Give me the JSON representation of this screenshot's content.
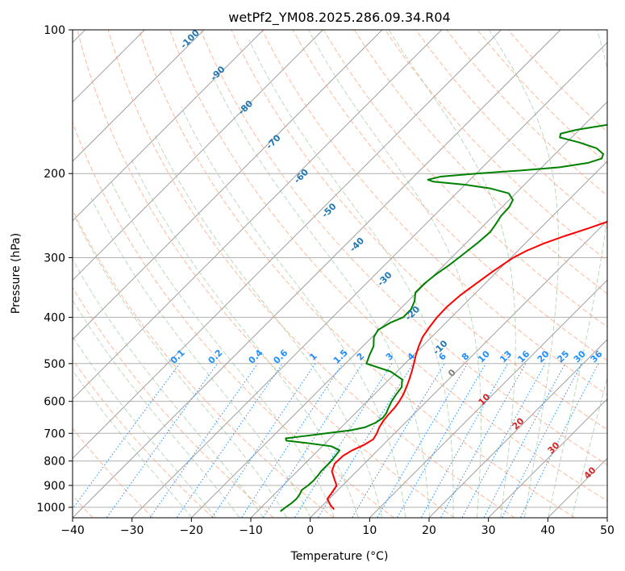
{
  "chart_data": {
    "type": "line",
    "subtype": "skew-t log-p diagram",
    "title": "wetPf2_YM08.2025.286.09.34.R04",
    "xlabel": "Temperature (°C)",
    "ylabel": "Pressure (hPa)",
    "xlim": [
      -40,
      50
    ],
    "ylim": [
      1050,
      100
    ],
    "x_ticks": [
      -40,
      -30,
      -20,
      -10,
      0,
      10,
      20,
      30,
      40,
      50
    ],
    "y_ticks": [
      100,
      200,
      300,
      400,
      500,
      600,
      700,
      800,
      900,
      1000
    ],
    "grid": true,
    "colors": {
      "temperature": "#ff0000",
      "dewpoint": "#008000",
      "isotherm": "#a0a0a0",
      "dry_adiabat": "#ffa07a",
      "moist_adiabat": "#90c090",
      "mixing_ratio": "#1e90ff",
      "dry_adiabat_label": "#1f77b4",
      "moist_adiabat_label": "#d62728"
    },
    "series": [
      {
        "name": "Temperature",
        "points": [
          {
            "p": 1010,
            "t": 2.6
          },
          {
            "p": 990,
            "t": 1.3
          },
          {
            "p": 960,
            "t": -0.3
          },
          {
            "p": 930,
            "t": -0.6
          },
          {
            "p": 900,
            "t": -1.0
          },
          {
            "p": 870,
            "t": -2.6
          },
          {
            "p": 840,
            "t": -4.2
          },
          {
            "p": 810,
            "t": -5.0
          },
          {
            "p": 780,
            "t": -4.9
          },
          {
            "p": 760,
            "t": -4.3
          },
          {
            "p": 740,
            "t": -3.2
          },
          {
            "p": 720,
            "t": -2.6
          },
          {
            "p": 700,
            "t": -3.0
          },
          {
            "p": 680,
            "t": -3.6
          },
          {
            "p": 660,
            "t": -4.0
          },
          {
            "p": 640,
            "t": -4.2
          },
          {
            "p": 620,
            "t": -4.3
          },
          {
            "p": 600,
            "t": -4.6
          },
          {
            "p": 580,
            "t": -5.1
          },
          {
            "p": 560,
            "t": -5.8
          },
          {
            "p": 540,
            "t": -6.6
          },
          {
            "p": 520,
            "t": -7.5
          },
          {
            "p": 500,
            "t": -8.5
          },
          {
            "p": 480,
            "t": -9.6
          },
          {
            "p": 460,
            "t": -10.6
          },
          {
            "p": 440,
            "t": -11.5
          },
          {
            "p": 420,
            "t": -12.0
          },
          {
            "p": 400,
            "t": -12.4
          },
          {
            "p": 380,
            "t": -12.5
          },
          {
            "p": 360,
            "t": -12.2
          },
          {
            "p": 340,
            "t": -11.5
          },
          {
            "p": 320,
            "t": -10.7
          },
          {
            "p": 300,
            "t": -9.6
          },
          {
            "p": 290,
            "t": -8.5
          },
          {
            "p": 280,
            "t": -6.8
          },
          {
            "p": 270,
            "t": -4.5
          },
          {
            "p": 260,
            "t": -1.8
          },
          {
            "p": 250,
            "t": 0.8
          },
          {
            "p": 240,
            "t": 4.3
          },
          {
            "p": 230,
            "t": 7.5
          },
          {
            "p": 220,
            "t": 10.5
          },
          {
            "p": 210,
            "t": 12.8
          },
          {
            "p": 200,
            "t": 14.9
          },
          {
            "p": 190,
            "t": 17.0
          },
          {
            "p": 180,
            "t": 18.8
          },
          {
            "p": 170,
            "t": 20.5
          },
          {
            "p": 160,
            "t": 21.6
          },
          {
            "p": 150,
            "t": 22.8
          },
          {
            "p": 140,
            "t": 24.5
          },
          {
            "p": 130,
            "t": 25.2
          },
          {
            "p": 125,
            "t": 25.8
          },
          {
            "p": 120,
            "t": 27.2
          },
          {
            "p": 115,
            "t": 28.4
          },
          {
            "p": 110,
            "t": 29.7
          },
          {
            "p": 105,
            "t": 31.0
          },
          {
            "p": 100,
            "t": 32.8
          }
        ]
      },
      {
        "name": "Dewpoint",
        "points": [
          {
            "p": 1020,
            "t": -6.1
          },
          {
            "p": 1000,
            "t": -5.9
          },
          {
            "p": 980,
            "t": -5.6
          },
          {
            "p": 960,
            "t": -5.5
          },
          {
            "p": 940,
            "t": -5.7
          },
          {
            "p": 920,
            "t": -6.1
          },
          {
            "p": 900,
            "t": -5.8
          },
          {
            "p": 880,
            "t": -5.7
          },
          {
            "p": 860,
            "t": -5.8
          },
          {
            "p": 840,
            "t": -6.0
          },
          {
            "p": 820,
            "t": -6.0
          },
          {
            "p": 800,
            "t": -6.0
          },
          {
            "p": 780,
            "t": -6.2
          },
          {
            "p": 760,
            "t": -6.4
          },
          {
            "p": 745,
            "t": -8.5
          },
          {
            "p": 735,
            "t": -12.5
          },
          {
            "p": 725,
            "t": -17.0
          },
          {
            "p": 717,
            "t": -17.5
          },
          {
            "p": 710,
            "t": -15.0
          },
          {
            "p": 700,
            "t": -11.5
          },
          {
            "p": 690,
            "t": -8.0
          },
          {
            "p": 680,
            "t": -6.0
          },
          {
            "p": 665,
            "t": -5.0
          },
          {
            "p": 650,
            "t": -4.6
          },
          {
            "p": 635,
            "t": -4.8
          },
          {
            "p": 620,
            "t": -5.3
          },
          {
            "p": 600,
            "t": -5.9
          },
          {
            "p": 580,
            "t": -6.3
          },
          {
            "p": 560,
            "t": -6.6
          },
          {
            "p": 540,
            "t": -7.8
          },
          {
            "p": 520,
            "t": -11.0
          },
          {
            "p": 500,
            "t": -16.5
          },
          {
            "p": 480,
            "t": -17.4
          },
          {
            "p": 460,
            "t": -18.2
          },
          {
            "p": 440,
            "t": -19.7
          },
          {
            "p": 425,
            "t": -20.2
          },
          {
            "p": 410,
            "t": -19.3
          },
          {
            "p": 400,
            "t": -18.1
          },
          {
            "p": 385,
            "t": -18.1
          },
          {
            "p": 370,
            "t": -18.9
          },
          {
            "p": 355,
            "t": -20.2
          },
          {
            "p": 340,
            "t": -20.2
          },
          {
            "p": 325,
            "t": -19.8
          },
          {
            "p": 310,
            "t": -19.1
          },
          {
            "p": 295,
            "t": -18.6
          },
          {
            "p": 280,
            "t": -18.1
          },
          {
            "p": 265,
            "t": -17.8
          },
          {
            "p": 255,
            "t": -18.2
          },
          {
            "p": 245,
            "t": -18.7
          },
          {
            "p": 235,
            "t": -18.8
          },
          {
            "p": 227,
            "t": -19.4
          },
          {
            "p": 220,
            "t": -21.2
          },
          {
            "p": 215,
            "t": -25.0
          },
          {
            "p": 211,
            "t": -30.0
          },
          {
            "p": 208,
            "t": -35.8
          },
          {
            "p": 206,
            "t": -37.1
          },
          {
            "p": 203,
            "t": -35.5
          },
          {
            "p": 200,
            "t": -30.0
          },
          {
            "p": 197,
            "t": -23.0
          },
          {
            "p": 194,
            "t": -17.0
          },
          {
            "p": 190,
            "t": -13.0
          },
          {
            "p": 186,
            "t": -11.4
          },
          {
            "p": 182,
            "t": -11.9
          },
          {
            "p": 177,
            "t": -14.0
          },
          {
            "p": 172,
            "t": -18.0
          },
          {
            "p": 168,
            "t": -22.0
          },
          {
            "p": 165,
            "t": -22.5
          },
          {
            "p": 162,
            "t": -20.5
          },
          {
            "p": 158,
            "t": -16.0
          },
          {
            "p": 153,
            "t": -12.0
          },
          {
            "p": 148,
            "t": -9.5
          },
          {
            "p": 143,
            "t": -8.4
          },
          {
            "p": 138,
            "t": -8.5
          },
          {
            "p": 133,
            "t": -8.7
          },
          {
            "p": 129,
            "t": -8.2
          },
          {
            "p": 125,
            "t": -6.8
          },
          {
            "p": 121,
            "t": -5.0
          },
          {
            "p": 117,
            "t": -3.1
          },
          {
            "p": 113,
            "t": -1.8
          },
          {
            "p": 108,
            "t": -0.6
          },
          {
            "p": 104,
            "t": 0.0
          },
          {
            "p": 100,
            "t": 0.6
          }
        ]
      }
    ],
    "dry_adiabat_labels": [
      "-100",
      "-90",
      "-80",
      "-70",
      "-60",
      "-50",
      "-40",
      "-30",
      "-20",
      "-10"
    ],
    "moist_adiabat_labels": [
      "0",
      "10",
      "20",
      "30",
      "40"
    ],
    "mixing_ratio_labels": [
      "0.1",
      "0.2",
      "0.4",
      "0.6",
      "1",
      "1.5",
      "2",
      "3",
      "4",
      "6",
      "8",
      "10",
      "13",
      "16",
      "20",
      "25",
      "30",
      "36"
    ]
  }
}
